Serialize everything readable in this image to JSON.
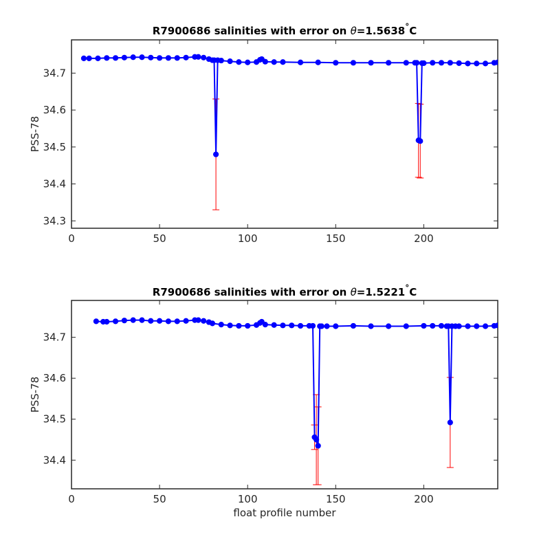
{
  "chart_data": [
    {
      "type": "line",
      "title_prefix": "R7900686 salinities with error on ",
      "title_symbol": "θ",
      "title_value": "=1.5638",
      "title_degree": "°",
      "title_unit": "C",
      "xlabel": "",
      "ylabel": "PSS-78",
      "xlim": [
        0,
        242
      ],
      "ylim": [
        34.28,
        34.79
      ],
      "xticks": [
        0,
        50,
        100,
        150,
        200
      ],
      "yticks": [
        34.3,
        34.4,
        34.5,
        34.6,
        34.7
      ],
      "grid": false,
      "series": [
        {
          "color": "#0000ff",
          "marker_color": "#0000ff",
          "error_color": "#ff0000",
          "x": [
            7,
            10,
            15,
            20,
            25,
            30,
            35,
            40,
            45,
            50,
            55,
            60,
            65,
            70,
            72,
            75,
            78,
            80,
            81,
            82,
            83,
            85,
            90,
            95,
            100,
            105,
            107,
            108,
            110,
            115,
            120,
            130,
            140,
            150,
            160,
            170,
            180,
            190,
            195,
            196,
            197,
            198,
            199,
            200,
            205,
            210,
            215,
            220,
            225,
            230,
            235,
            240,
            242
          ],
          "y": [
            34.74,
            34.74,
            34.74,
            34.741,
            34.741,
            34.742,
            34.743,
            34.743,
            34.742,
            34.741,
            34.741,
            34.741,
            34.742,
            34.744,
            34.744,
            34.742,
            34.738,
            34.735,
            34.735,
            34.48,
            34.735,
            34.734,
            34.732,
            34.73,
            34.729,
            34.73,
            34.736,
            34.738,
            34.731,
            34.73,
            34.73,
            34.729,
            34.729,
            34.728,
            34.728,
            34.728,
            34.728,
            34.728,
            34.728,
            34.728,
            34.518,
            34.516,
            34.727,
            34.727,
            34.728,
            34.728,
            34.728,
            34.727,
            34.726,
            34.726,
            34.726,
            34.728,
            34.729
          ],
          "error": [
            0.004,
            0.004,
            0.004,
            0.004,
            0.004,
            0.004,
            0.004,
            0.004,
            0.004,
            0.004,
            0.004,
            0.004,
            0.004,
            0.004,
            0.004,
            0.004,
            0.004,
            0.004,
            0.004,
            0.15,
            0.004,
            0.004,
            0.004,
            0.004,
            0.004,
            0.004,
            0.004,
            0.004,
            0.004,
            0.004,
            0.004,
            0.004,
            0.004,
            0.004,
            0.004,
            0.004,
            0.004,
            0.004,
            0.004,
            0.004,
            0.1,
            0.1,
            0.004,
            0.004,
            0.004,
            0.004,
            0.004,
            0.004,
            0.004,
            0.004,
            0.004,
            0.004,
            0.004
          ]
        }
      ]
    },
    {
      "type": "line",
      "title_prefix": "R7900686 salinities with error on ",
      "title_symbol": "θ",
      "title_value": "=1.5221",
      "title_degree": "°",
      "title_unit": "C",
      "xlabel": "float profile number",
      "ylabel": "PSS-78",
      "xlim": [
        0,
        242
      ],
      "ylim": [
        34.33,
        34.79
      ],
      "xticks": [
        0,
        50,
        100,
        150,
        200
      ],
      "yticks": [
        34.4,
        34.5,
        34.6,
        34.7
      ],
      "grid": false,
      "series": [
        {
          "color": "#0000ff",
          "marker_color": "#0000ff",
          "error_color": "#ff0000",
          "x": [
            14,
            18,
            20,
            25,
            30,
            35,
            40,
            45,
            50,
            55,
            60,
            65,
            70,
            72,
            75,
            78,
            80,
            85,
            90,
            95,
            100,
            105,
            107,
            108,
            110,
            115,
            120,
            125,
            130,
            135,
            137,
            138,
            139,
            140,
            141,
            142,
            145,
            150,
            160,
            170,
            180,
            190,
            200,
            205,
            210,
            213,
            214,
            215,
            216,
            218,
            220,
            225,
            230,
            235,
            240,
            242
          ],
          "y": [
            34.739,
            34.738,
            34.738,
            34.739,
            34.741,
            34.742,
            34.742,
            34.74,
            34.74,
            34.739,
            34.739,
            34.74,
            34.742,
            34.742,
            34.74,
            34.737,
            34.734,
            34.731,
            34.729,
            34.728,
            34.728,
            34.73,
            34.735,
            34.738,
            34.731,
            34.73,
            34.729,
            34.729,
            34.728,
            34.728,
            34.728,
            34.456,
            34.45,
            34.435,
            34.727,
            34.727,
            34.727,
            34.727,
            34.728,
            34.727,
            34.727,
            34.727,
            34.728,
            34.728,
            34.728,
            34.727,
            34.727,
            34.492,
            34.727,
            34.727,
            34.727,
            34.727,
            34.727,
            34.727,
            34.728,
            34.729
          ],
          "error": [
            0.004,
            0.004,
            0.004,
            0.004,
            0.004,
            0.004,
            0.004,
            0.004,
            0.004,
            0.004,
            0.004,
            0.004,
            0.004,
            0.004,
            0.004,
            0.004,
            0.004,
            0.004,
            0.004,
            0.004,
            0.004,
            0.004,
            0.004,
            0.004,
            0.004,
            0.004,
            0.004,
            0.004,
            0.004,
            0.004,
            0.004,
            0.03,
            0.11,
            0.095,
            0.004,
            0.004,
            0.004,
            0.004,
            0.004,
            0.004,
            0.004,
            0.004,
            0.004,
            0.004,
            0.004,
            0.004,
            0.004,
            0.11,
            0.004,
            0.004,
            0.004,
            0.004,
            0.004,
            0.004,
            0.004,
            0.004
          ]
        }
      ]
    }
  ]
}
